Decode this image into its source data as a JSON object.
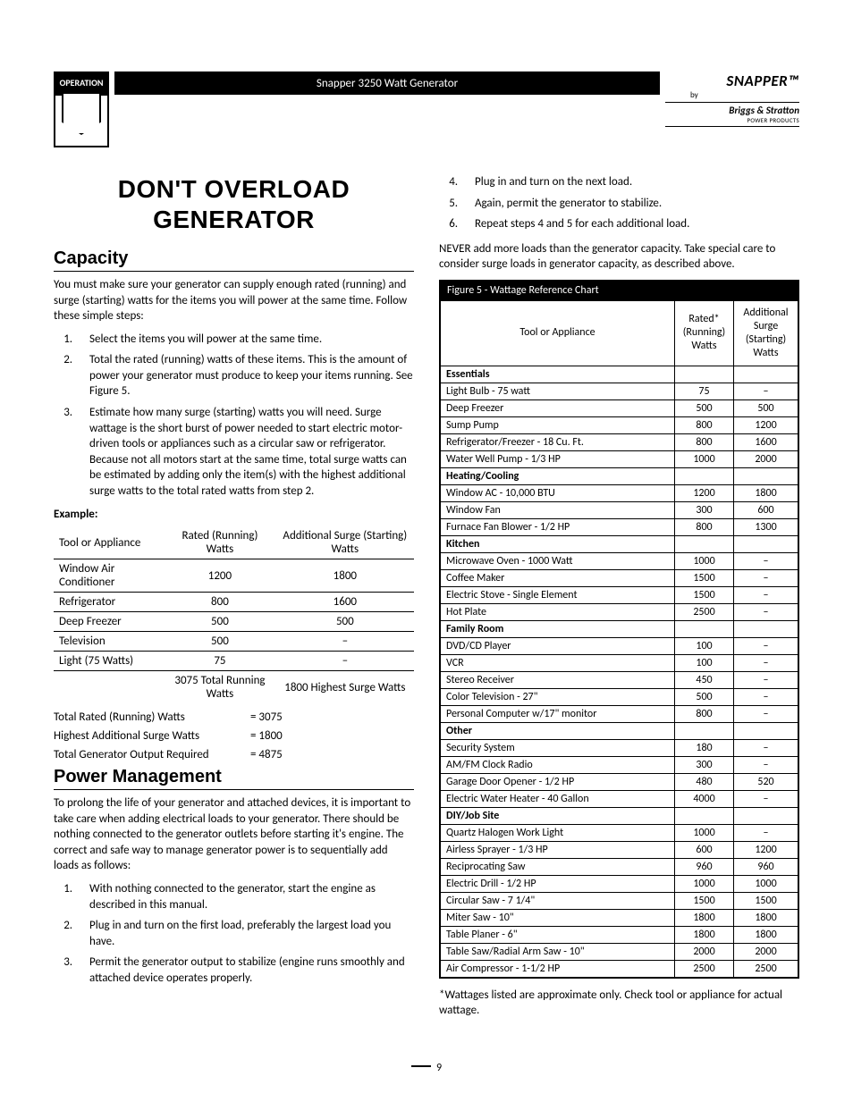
{
  "header": {
    "badge_label": "OPERATION",
    "title_bar": "Snapper 3250 Watt Generator",
    "logo_brand": "SNAPPER™",
    "logo_by": "by",
    "logo_sub": "Briggs & Stratton",
    "logo_sub2": "POWER PRODUCTS"
  },
  "main_heading_l1": "DON'T OVERLOAD",
  "main_heading_l2": "GENERATOR",
  "capacity": {
    "heading": "Capacity",
    "intro": "You must make sure your generator can supply enough rated (running) and surge (starting) watts for the items you will power at the same time. Follow these simple steps:",
    "steps": [
      "Select the items you will power at the same time.",
      "Total the rated (running) watts of these items. This is the amount of power your generator must produce to keep your items running. See Figure 5.",
      "Estimate how many surge (starting) watts you will need. Surge wattage is the short burst of power needed to start electric motor-driven tools or appliances such as a circular saw or refrigerator. Because not all motors start at the same time, total surge watts can be estimated by adding only the item(s) with the highest additional surge watts to the total rated watts from step 2."
    ],
    "example_label": "Example:",
    "example_headers": [
      "Tool or Appliance",
      "Rated (Running) Watts",
      "Additional Surge (Starting) Watts"
    ],
    "example_rows": [
      {
        "a": "Window Air Conditioner",
        "b": "1200",
        "c": "1800"
      },
      {
        "a": "Refrigerator",
        "b": "800",
        "c": "1600"
      },
      {
        "a": "Deep Freezer",
        "b": "500",
        "c": "500"
      },
      {
        "a": "Television",
        "b": "500",
        "c": "–"
      },
      {
        "a": "Light (75 Watts)",
        "b": "75",
        "c": "–"
      }
    ],
    "example_totals_row": {
      "b": "3075 Total Running Watts",
      "c": "1800 Highest Surge Watts"
    },
    "totals": [
      {
        "label": "Total Rated (Running) Watts",
        "value": "= 3075"
      },
      {
        "label": "Highest Additional Surge Watts",
        "value": "= 1800"
      },
      {
        "label": "Total Generator Output Required",
        "value": "= 4875"
      }
    ]
  },
  "power_mgmt": {
    "heading": "Power Management",
    "intro": "To prolong the life of your generator and attached devices, it is important to take care when adding electrical loads to your generator. There should be nothing connected to the generator outlets before starting it's engine. The correct and safe way to manage generator power is to sequentially add loads as follows:",
    "steps_left": [
      "With nothing connected to the generator, start the engine as described in this manual.",
      "Plug in and turn on the first load, preferably the largest load you have.",
      "Permit the generator output to stabilize (engine runs smoothly and attached device operates properly."
    ],
    "steps_right": [
      "Plug in and turn on the next load.",
      "Again, permit the generator to stabilize.",
      "Repeat steps 4 and 5 for each additional load."
    ],
    "never": "NEVER add more loads than the generator capacity. Take special care to consider surge loads in generator capacity, as described above."
  },
  "figure5": {
    "title": "Figure 5 - Wattage Reference Chart",
    "headers": [
      "Tool or Appliance",
      "Rated* (Running) Watts",
      "Additional Surge (Starting) Watts"
    ],
    "rows": [
      {
        "t": "cat",
        "a": "Essentials"
      },
      {
        "a": "Light Bulb - 75 watt",
        "b": "75",
        "c": "–"
      },
      {
        "a": "Deep Freezer",
        "b": "500",
        "c": "500"
      },
      {
        "a": "Sump Pump",
        "b": "800",
        "c": "1200"
      },
      {
        "a": "Refrigerator/Freezer - 18 Cu. Ft.",
        "b": "800",
        "c": "1600"
      },
      {
        "a": "Water Well Pump - 1/3 HP",
        "b": "1000",
        "c": "2000"
      },
      {
        "t": "cat",
        "a": "Heating/Cooling"
      },
      {
        "a": "Window AC - 10,000 BTU",
        "b": "1200",
        "c": "1800"
      },
      {
        "a": "Window Fan",
        "b": "300",
        "c": "600"
      },
      {
        "a": "Furnace Fan Blower - 1/2 HP",
        "b": "800",
        "c": "1300"
      },
      {
        "t": "cat",
        "a": "Kitchen"
      },
      {
        "a": "Microwave Oven - 1000 Watt",
        "b": "1000",
        "c": "–"
      },
      {
        "a": "Coffee Maker",
        "b": "1500",
        "c": "–"
      },
      {
        "a": "Electric Stove - Single Element",
        "b": "1500",
        "c": "–"
      },
      {
        "a": "Hot Plate",
        "b": "2500",
        "c": "–"
      },
      {
        "t": "cat",
        "a": "Family Room"
      },
      {
        "a": "DVD/CD Player",
        "b": "100",
        "c": "–"
      },
      {
        "a": "VCR",
        "b": "100",
        "c": "–"
      },
      {
        "a": "Stereo Receiver",
        "b": "450",
        "c": "–"
      },
      {
        "a": "Color Television - 27\"",
        "b": "500",
        "c": "–"
      },
      {
        "a": "Personal Computer w/17\" monitor",
        "b": "800",
        "c": "–"
      },
      {
        "t": "cat",
        "a": "Other"
      },
      {
        "a": "Security System",
        "b": "180",
        "c": "–"
      },
      {
        "a": "AM/FM Clock Radio",
        "b": "300",
        "c": "–"
      },
      {
        "a": "Garage Door Opener - 1/2 HP",
        "b": "480",
        "c": "520"
      },
      {
        "a": "Electric Water Heater - 40 Gallon",
        "b": "4000",
        "c": "–"
      },
      {
        "t": "cat",
        "a": "DIY/Job Site"
      },
      {
        "a": "Quartz Halogen Work Light",
        "b": "1000",
        "c": "–"
      },
      {
        "a": "Airless Sprayer - 1/3 HP",
        "b": "600",
        "c": "1200"
      },
      {
        "a": "Reciprocating Saw",
        "b": "960",
        "c": "960"
      },
      {
        "a": "Electric Drill - 1/2 HP",
        "b": "1000",
        "c": "1000"
      },
      {
        "a": "Circular Saw - 7 1/4\"",
        "b": "1500",
        "c": "1500"
      },
      {
        "a": "Miter Saw - 10\"",
        "b": "1800",
        "c": "1800"
      },
      {
        "a": "Table Planer - 6\"",
        "b": "1800",
        "c": "1800"
      },
      {
        "a": "Table Saw/Radial Arm Saw - 10\"",
        "b": "2000",
        "c": "2000"
      },
      {
        "a": "Air Compressor - 1-1/2 HP",
        "b": "2500",
        "c": "2500"
      }
    ],
    "footnote": "*Wattages listed are approximate only. Check tool or appliance for actual wattage."
  },
  "page_number": "9"
}
